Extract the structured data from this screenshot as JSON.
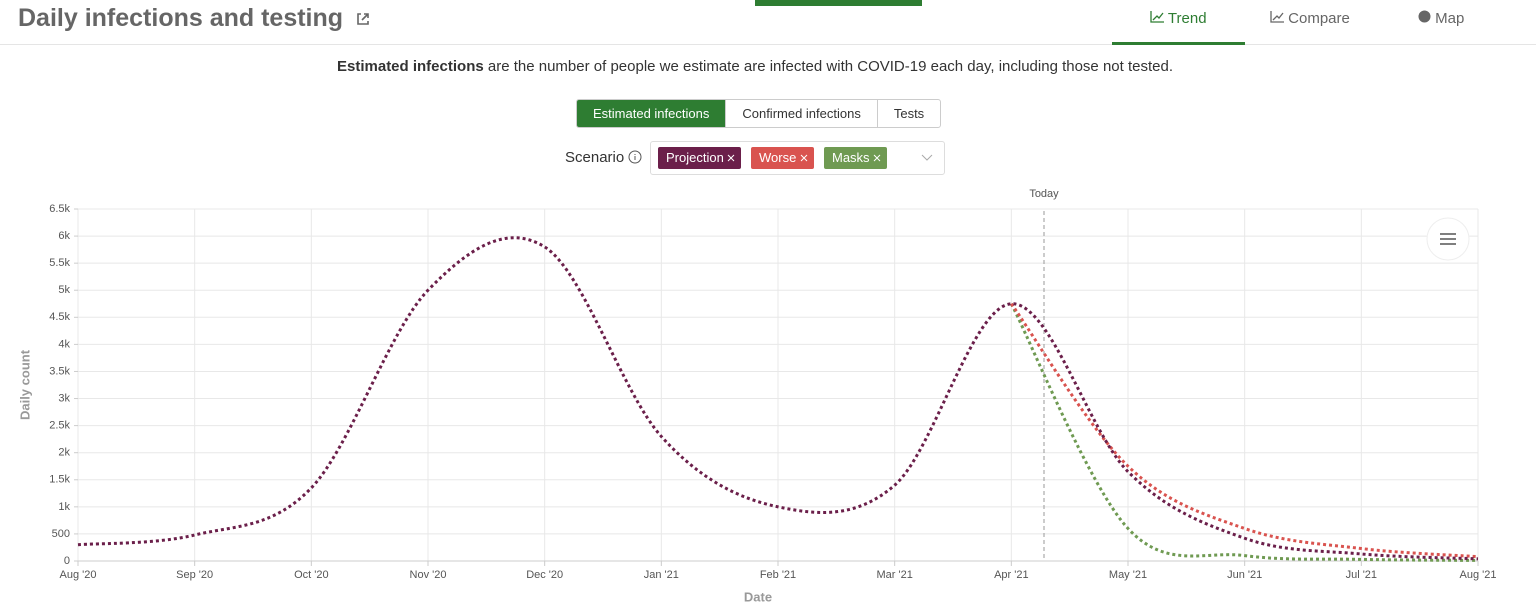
{
  "header": {
    "title": "Daily infections and testing",
    "tabs": [
      "Trend",
      "Compare",
      "Map"
    ]
  },
  "description": {
    "bold": "Estimated infections",
    "text": "are the number of people we estimate are infected with COVID-19 each day, including those not tested."
  },
  "toggles": [
    "Estimated infections",
    "Confirmed infections",
    "Tests"
  ],
  "scenario": {
    "label": "Scenario"
  },
  "chart_data": {
    "type": "line",
    "annotation": "Today",
    "xlabel": "Date",
    "ylabel": "Daily count",
    "categories": [
      "Aug '20",
      "Sep '20",
      "Oct '20",
      "Nov '20",
      "Dec '20",
      "Jan '21",
      "Feb '21",
      "Mar '21",
      "Apr '21",
      "May '21",
      "Jun '21",
      "Jul '21",
      "Aug '21"
    ],
    "series": [
      {
        "name": "Projection",
        "color": "#6b1f4a",
        "values": [
          300,
          480,
          1350,
          5000,
          5800,
          2300,
          1000,
          1400,
          4750,
          1650,
          420,
          130,
          40
        ]
      },
      {
        "name": "Worse",
        "color": "#d9534f",
        "values": [
          null,
          null,
          null,
          null,
          null,
          null,
          null,
          null,
          4750,
          1750,
          600,
          230,
          80
        ]
      },
      {
        "name": "Masks",
        "color": "#6f9a52",
        "values": [
          null,
          null,
          null,
          null,
          null,
          null,
          null,
          null,
          4750,
          600,
          100,
          30,
          10
        ]
      }
    ],
    "ylim": [
      0,
      6500
    ],
    "yticks": [
      0,
      500,
      {
        "value": 1000,
        "label": "1k"
      },
      {
        "value": 1500,
        "label": "1.5k"
      },
      {
        "value": 2000,
        "label": "2k"
      },
      {
        "value": 2500,
        "label": "2.5k"
      },
      {
        "value": 3000,
        "label": "3k"
      },
      {
        "value": 3500,
        "label": "3.5k"
      },
      {
        "value": 4000,
        "label": "4k"
      },
      {
        "value": 4500,
        "label": "4.5k"
      },
      {
        "value": 5000,
        "label": "5k"
      },
      {
        "value": 5500,
        "label": "5.5k"
      },
      {
        "value": 6000,
        "label": "6k"
      },
      {
        "value": 6500,
        "label": "6.5k"
      }
    ],
    "grid": true
  }
}
